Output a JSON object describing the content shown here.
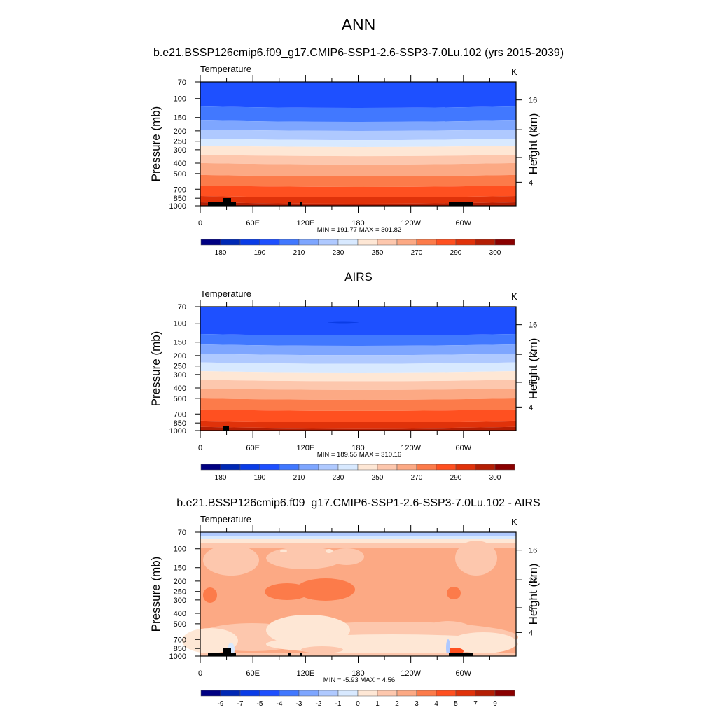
{
  "chart_data": {
    "type": "heatmap",
    "title": "ANN",
    "panels": [
      {
        "title": "b.e21.BSSP126cmip6.f09_g17.CMIP6-SSP1-2.6-SSP3-7.0Lu.102 (yrs 2015-2039)",
        "left_label": "Temperature",
        "right_label": "K",
        "stats": "MIN = 191.77  MAX = 301.82",
        "cbar": "abs",
        "kind": "abs1"
      },
      {
        "title": "AIRS",
        "left_label": "Temperature",
        "right_label": "K",
        "stats": "MIN = 189.55  MAX = 310.16",
        "cbar": "abs",
        "kind": "abs2"
      },
      {
        "title": "b.e21.BSSP126cmip6.f09_g17.CMIP6-SSP1-2.6-SSP3-7.0Lu.102 - AIRS",
        "left_label": "Temperature",
        "right_label": "K",
        "stats": "MIN =  -5.93  MAX =   4.56",
        "cbar": "diff",
        "kind": "diff"
      }
    ],
    "ylabel": "Pressure (mb)",
    "ylabel_right": "Height (km)",
    "yticks": [
      70,
      100,
      150,
      200,
      250,
      300,
      400,
      500,
      700,
      850,
      1000
    ],
    "ylim": [
      70,
      1000
    ],
    "yscale": "log",
    "height_ticks": [
      4,
      8,
      12,
      16
    ],
    "xticks": [
      {
        "lon": 0,
        "label": "0"
      },
      {
        "lon": 60,
        "label": "60E"
      },
      {
        "lon": 120,
        "label": "120E"
      },
      {
        "lon": 180,
        "label": "180"
      },
      {
        "lon": 240,
        "label": "120W"
      },
      {
        "lon": 300,
        "label": "60W"
      }
    ],
    "xlim": [
      0,
      360
    ],
    "colorbars": {
      "abs": {
        "levels": [
          180,
          185,
          190,
          200,
          210,
          220,
          230,
          240,
          250,
          260,
          270,
          280,
          290,
          295,
          300
        ],
        "labels": [
          "180",
          "",
          "190",
          "",
          "210",
          "",
          "230",
          "",
          "250",
          "",
          "270",
          "",
          "290",
          "",
          "300"
        ]
      },
      "diff": {
        "levels": [
          -9,
          -7,
          -5,
          -4,
          -3,
          -2,
          -1,
          0,
          1,
          2,
          3,
          4,
          5,
          7,
          9
        ],
        "labels": [
          "-9",
          "-7",
          "-5",
          "-4",
          "-3",
          "-2",
          "-1",
          "0",
          "1",
          "2",
          "3",
          "4",
          "5",
          "7",
          "9"
        ]
      }
    },
    "colors": [
      "#000082",
      "#0028b4",
      "#0a3ce6",
      "#1e50ff",
      "#4178ff",
      "#7ea6ff",
      "#afc9ff",
      "#d8e9ff",
      "#fee7d5",
      "#fdc7ad",
      "#fca984",
      "#fc7b4a",
      "#ff5020",
      "#e0320a",
      "#b41e04",
      "#8a0000"
    ]
  }
}
